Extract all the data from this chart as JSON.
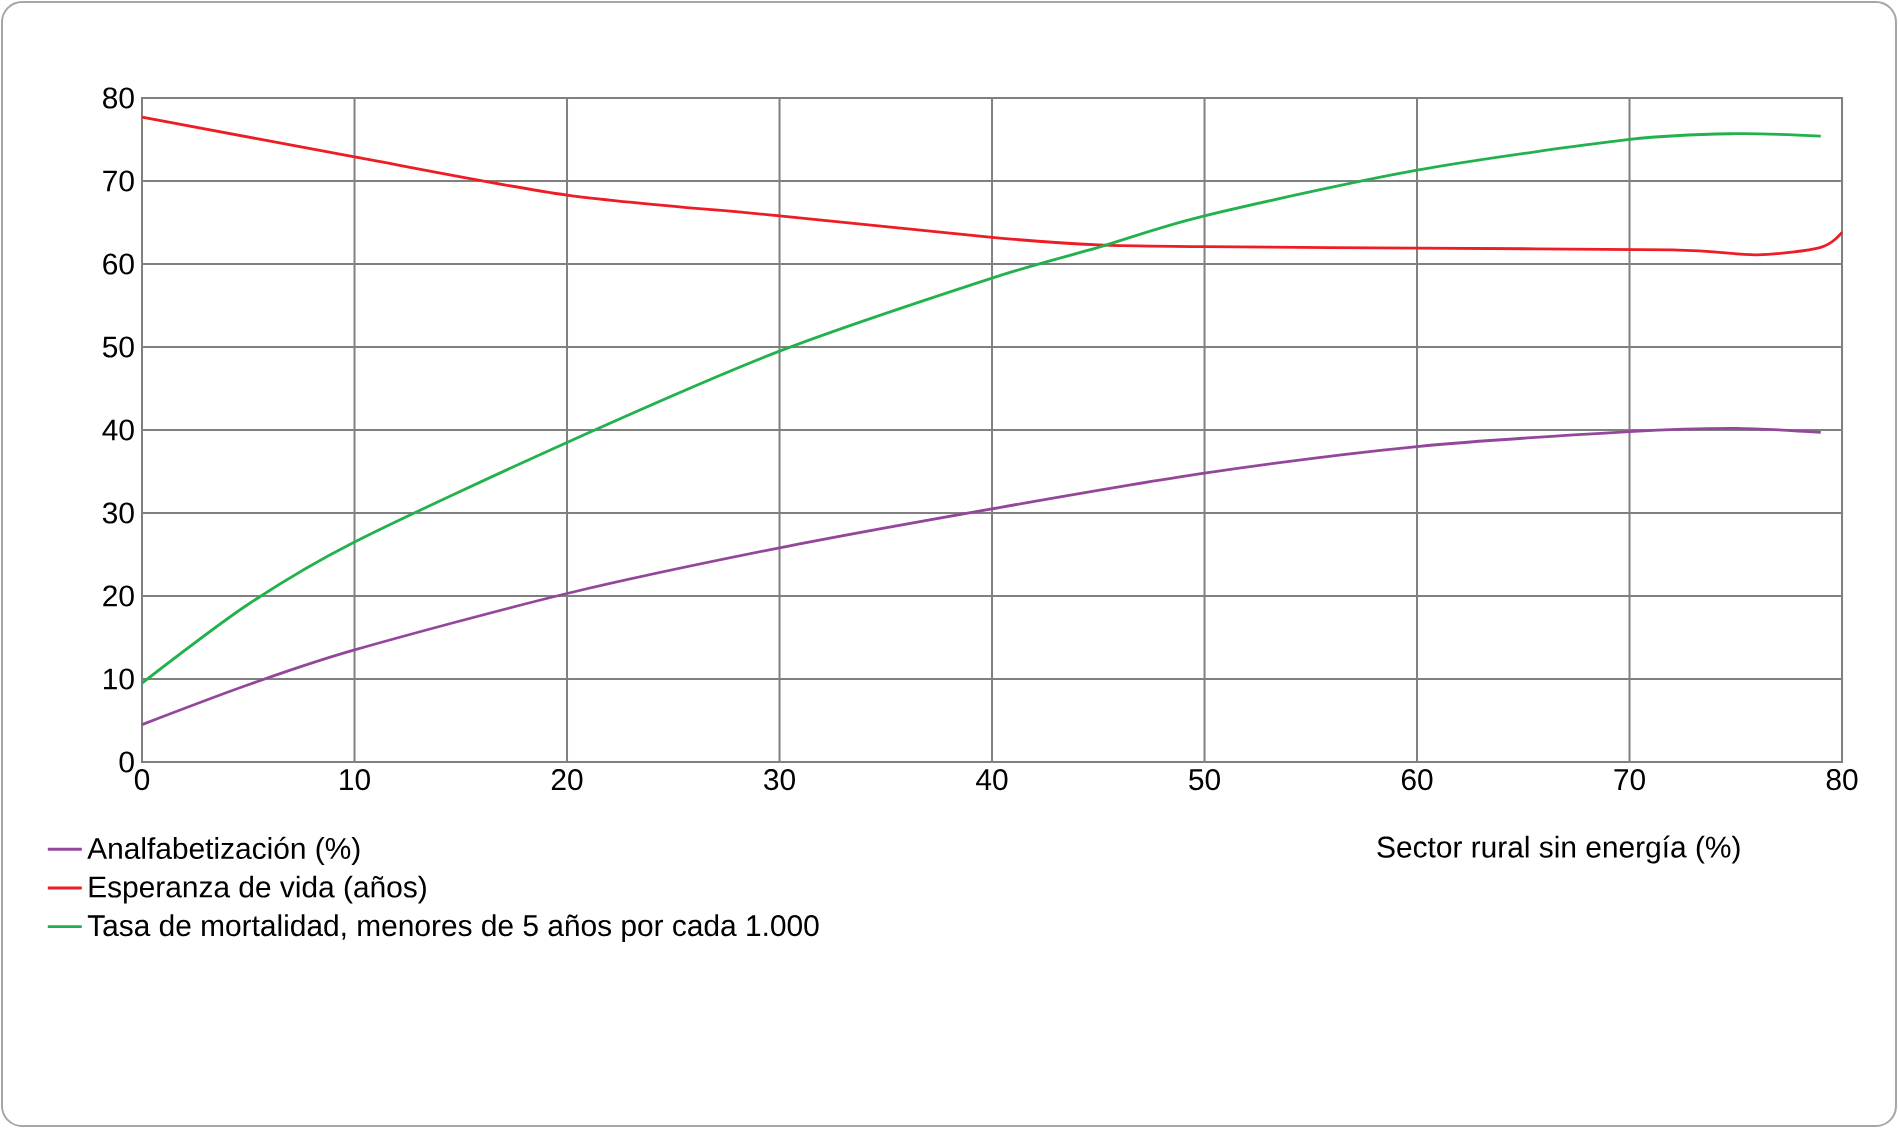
{
  "chart_data": {
    "type": "line",
    "xlabel": "Sector rural sin energía (%)",
    "xlim": [
      0,
      80
    ],
    "xticks": [
      0,
      10,
      20,
      30,
      40,
      50,
      60,
      70,
      80
    ],
    "ylim": [
      0,
      80
    ],
    "yticks": [
      0,
      10,
      20,
      30,
      40,
      50,
      60,
      70,
      80
    ],
    "grid": true,
    "legend": "bottom left",
    "marker": "none",
    "line_style": "solid",
    "series": [
      {
        "name": "Analfabetización (%)",
        "color": "#93479b",
        "x": [
          0,
          5,
          10,
          20,
          30,
          40,
          50,
          60,
          70,
          75,
          79
        ],
        "values": [
          4.5,
          9.3,
          13.5,
          20.3,
          25.8,
          30.5,
          34.8,
          38,
          39.8,
          40.2,
          39.7
        ]
      },
      {
        "name": "Esperanza de vida (años)",
        "color": "#ee1c25",
        "x": [
          0,
          10,
          20,
          30,
          40,
          45,
          50,
          60,
          72,
          76,
          79,
          80
        ],
        "values": [
          77.7,
          72.9,
          68.3,
          65.8,
          63.2,
          62.3,
          62.1,
          61.9,
          61.7,
          61.1,
          62,
          63.8
        ]
      },
      {
        "name": "Tasa de mortalidad, menores de 5 años por cada 1.000",
        "color": "#22b14c",
        "x": [
          0,
          5,
          10,
          20,
          30,
          40,
          45,
          50,
          60,
          70,
          75,
          79
        ],
        "values": [
          9.5,
          19,
          26.5,
          38.5,
          49.5,
          58.3,
          62,
          65.8,
          71.3,
          75,
          75.7,
          75.4
        ]
      }
    ]
  }
}
